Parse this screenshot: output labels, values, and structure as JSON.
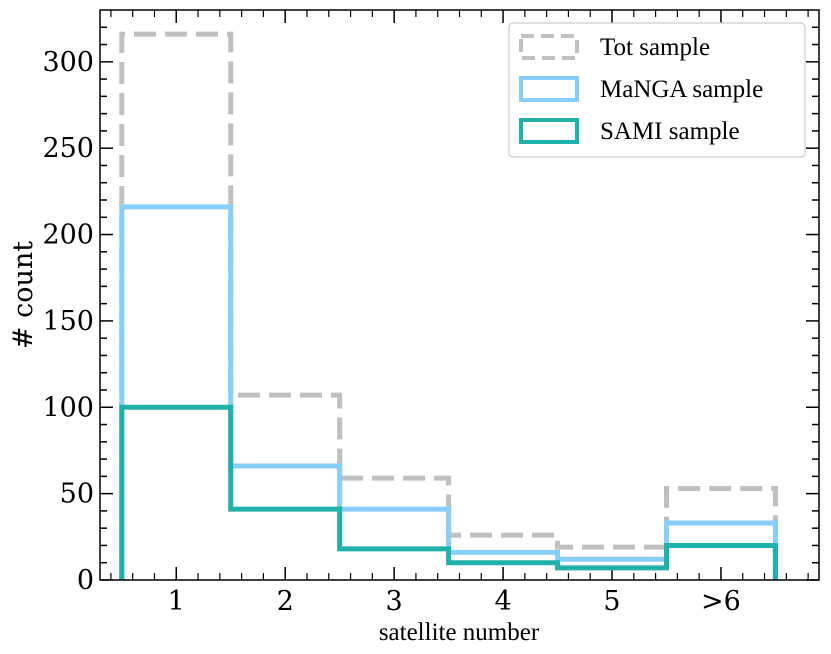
{
  "chart_data": {
    "type": "histogram",
    "categories": [
      "1",
      "2",
      "3",
      "4",
      "5",
      ">6"
    ],
    "xlabel": "satellite number",
    "ylabel": "# count",
    "ylim": [
      0,
      330
    ],
    "yticks": [
      0,
      50,
      100,
      150,
      200,
      250,
      300
    ],
    "series": [
      {
        "name": "Tot sample",
        "style": "dashed",
        "color": "#c0c0c0",
        "values": [
          316,
          107,
          59,
          26,
          19,
          53
        ]
      },
      {
        "name": "MaNGA sample",
        "style": "solid",
        "color": "#87cefa",
        "values": [
          216,
          66,
          41,
          16,
          12,
          33
        ]
      },
      {
        "name": "SAMI sample",
        "style": "solid",
        "color": "#20b2aa",
        "values": [
          100,
          41,
          18,
          10,
          7,
          20
        ]
      }
    ],
    "legend_position": "top-right"
  }
}
